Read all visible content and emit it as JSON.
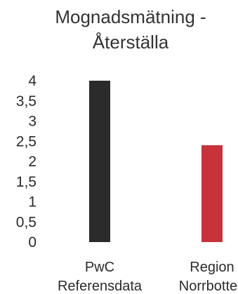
{
  "chart_data": {
    "type": "bar",
    "title_lines": [
      "Mognadsmätning -",
      "Återställa"
    ],
    "categories": [
      [
        "PwC",
        "Referensdata"
      ],
      [
        "Region",
        "Norrbotten"
      ]
    ],
    "values": [
      4,
      2.4
    ],
    "colors": [
      "#2b2b2b",
      "#c8323a"
    ],
    "ylim": [
      0,
      4
    ],
    "yticks": [
      "0",
      "0,5",
      "1",
      "1,5",
      "2",
      "2,5",
      "3",
      "3,5",
      "4"
    ],
    "grid": false,
    "legend": "none"
  }
}
